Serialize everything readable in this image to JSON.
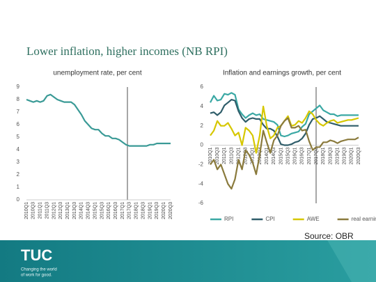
{
  "title": "Lower inflation, higher incomes (NB RPI)",
  "source": "Source: OBR",
  "logo": {
    "name": "TUC",
    "tagline": [
      "Changing the world",
      "of work for good."
    ]
  },
  "chart_data": [
    {
      "type": "line",
      "subtitle": "unemployment rate, per cent",
      "categories": [
        "2010Q1",
        null,
        "2010Q3",
        null,
        "2011Q1",
        null,
        "2011Q3",
        null,
        "2012Q1",
        null,
        "2012Q3",
        null,
        "2013Q1",
        null,
        "2013Q3",
        null,
        "2014Q1",
        null,
        "2014Q3",
        null,
        "2015Q1",
        null,
        "2015Q3",
        null,
        "2016Q1",
        null,
        "2016Q3",
        null,
        "2017Q1",
        null,
        "2017Q3",
        null,
        "2018Q1",
        null,
        "2018Q3",
        null,
        "2019Q1",
        null,
        "2019Q3",
        null,
        "2020Q1",
        null,
        "2020Q3"
      ],
      "series": [
        {
          "name": "unemployment",
          "color": "#3a9a96",
          "values": [
            8.0,
            7.9,
            7.8,
            7.9,
            7.8,
            7.9,
            8.3,
            8.4,
            8.2,
            8.0,
            7.9,
            7.8,
            7.8,
            7.8,
            7.6,
            7.2,
            6.8,
            6.3,
            6.0,
            5.7,
            5.6,
            5.6,
            5.3,
            5.1,
            5.1,
            4.9,
            4.9,
            4.8,
            4.6,
            4.4,
            4.3,
            4.3,
            4.3,
            4.3,
            4.3,
            4.3,
            4.4,
            4.4,
            4.5,
            4.5,
            4.5,
            4.5,
            4.5
          ]
        }
      ],
      "ylim": [
        0,
        9
      ],
      "yticks": [
        0,
        1,
        2,
        3,
        4,
        5,
        6,
        7,
        8,
        9
      ]
    },
    {
      "type": "line",
      "subtitle": "Inflation and earnings growth, per cent",
      "categories": [
        "2010Q1",
        null,
        "2010Q3",
        null,
        "2011Q1",
        null,
        "2011Q3",
        null,
        "2012Q1",
        null,
        "2012Q3",
        null,
        "2013Q1",
        null,
        "2013Q3",
        null,
        "2014Q1",
        null,
        "2014Q3",
        null,
        "2015Q1",
        null,
        "2015Q3",
        null,
        "2016Q1",
        null,
        "2016Q3",
        null,
        "2017Q1",
        null,
        "2017Q3",
        null,
        "2018Q1",
        null,
        "2018Q3",
        null,
        "2019Q1",
        null,
        "2019Q3",
        null,
        "2020Q1",
        null,
        "2020Q3"
      ],
      "series": [
        {
          "name": "RPI",
          "color": "#3aa8a4",
          "values": [
            4.4,
            5.1,
            4.6,
            4.7,
            5.3,
            5.2,
            5.4,
            5.2,
            3.7,
            3.2,
            2.8,
            3.1,
            3.3,
            3.1,
            3.2,
            2.7,
            2.6,
            2.5,
            2.4,
            2.1,
            1.0,
            0.9,
            1.0,
            1.2,
            1.3,
            1.4,
            1.9,
            2.2,
            3.2,
            3.5,
            3.8,
            4.1,
            3.6,
            3.4,
            3.2,
            3.2,
            3.0,
            3.1,
            3.1,
            3.1,
            3.1,
            3.1,
            3.1
          ]
        },
        {
          "name": "CPI",
          "color": "#2f5d6a",
          "values": [
            3.3,
            3.4,
            3.1,
            3.4,
            4.1,
            4.4,
            4.7,
            4.6,
            3.5,
            2.8,
            2.4,
            2.7,
            2.8,
            2.7,
            2.7,
            2.1,
            1.7,
            1.7,
            1.5,
            0.9,
            0.1,
            0.0,
            0.0,
            0.1,
            0.3,
            0.4,
            0.7,
            1.2,
            2.1,
            2.7,
            2.8,
            3.0,
            2.7,
            2.4,
            2.3,
            2.2,
            2.1,
            2.0,
            2.0,
            2.0,
            2.0,
            2.0,
            2.0
          ]
        },
        {
          "name": "AWE",
          "color": "#d6c700",
          "values": [
            1.0,
            1.5,
            2.5,
            2.0,
            2.0,
            2.3,
            1.7,
            1.0,
            1.3,
            0.0,
            1.8,
            1.5,
            1.0,
            -0.8,
            1.0,
            4.0,
            2.0,
            0.7,
            1.0,
            1.8,
            2.0,
            2.5,
            3.0,
            2.0,
            2.1,
            2.5,
            2.3,
            2.8,
            3.5,
            3.2,
            2.6,
            2.2,
            2.0,
            2.3,
            2.5,
            2.6,
            2.3,
            2.4,
            2.5,
            2.6,
            2.6,
            2.7,
            2.8
          ]
        },
        {
          "name": "real earnings",
          "color": "#8a7a3c",
          "values": [
            -2.0,
            -1.5,
            -2.5,
            -2.0,
            -3.0,
            -4.0,
            -4.5,
            -3.5,
            -1.5,
            -2.5,
            -0.5,
            -1.0,
            -1.8,
            -3.0,
            -1.0,
            1.5,
            0.3,
            -0.8,
            0.5,
            1.0,
            2.0,
            2.5,
            2.8,
            1.8,
            1.8,
            2.0,
            1.5,
            1.6,
            0.4,
            -0.5,
            -0.2,
            -0.2,
            0.3,
            0.3,
            0.5,
            0.4,
            0.2,
            0.4,
            0.5,
            0.6,
            0.6,
            0.6,
            0.8
          ]
        }
      ],
      "ylim": [
        -6,
        6
      ],
      "yticks": [
        -6,
        -4,
        -2,
        0,
        2,
        4,
        6
      ]
    }
  ]
}
